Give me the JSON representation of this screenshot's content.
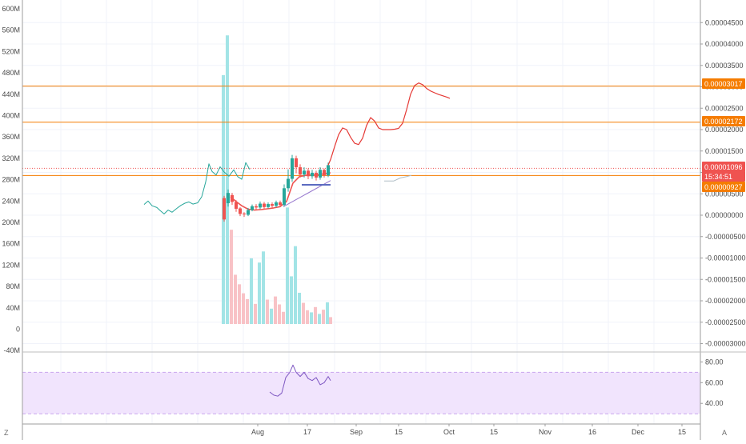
{
  "left_axis": {
    "ticks": [
      "600M",
      "560M",
      "520M",
      "480M",
      "440M",
      "400M",
      "360M",
      "320M",
      "280M",
      "240M",
      "200M",
      "160M",
      "120M",
      "80M",
      "40M",
      "0",
      "-40M"
    ]
  },
  "right_axis": {
    "ticks": [
      "0.00004500",
      "0.00004000",
      "0.00003500",
      "0.00003000",
      "0.00002500",
      "0.00002000",
      "0.00001500",
      "0.00001000",
      "0.00000500",
      "0.00000000",
      "-0.00000500",
      "-0.00001000",
      "-0.00001500",
      "-0.00002000",
      "-0.00002500",
      "-0.00003000"
    ]
  },
  "price_labels": [
    {
      "name": "level-upper",
      "text": "0.00003017",
      "color": "#f57c00"
    },
    {
      "name": "level-mid",
      "text": "0.00002172",
      "color": "#f57c00"
    },
    {
      "name": "last-price",
      "text": "0.00001096",
      "color": "#ef5350"
    },
    {
      "name": "countdown",
      "text": "15:34:51",
      "color": "#ef5350"
    },
    {
      "name": "level-lower",
      "text": "0.00000927",
      "color": "#f57c00"
    }
  ],
  "time_axis": {
    "ticks": [
      "Aug",
      "17",
      "Sep",
      "15",
      "Oct",
      "15",
      "Nov",
      "16",
      "Dec",
      "15"
    ]
  },
  "rsi_axis": {
    "ticks": [
      "80.00",
      "60.00",
      "40.00"
    ]
  },
  "buttons": {
    "zoom": "Z",
    "auto": "A"
  },
  "colors": {
    "up": "#26a69a",
    "down": "#ef5350",
    "volume_up": "#a2e4e6",
    "volume_down": "#f8c2c6",
    "horizontal_level": "#f57c00",
    "forecast_line": "#e53935",
    "rsi_line": "#7e57c2",
    "rsi_band": "#f1e4fd"
  },
  "chart_data": {
    "type": "candlestick",
    "price_axis_range": [
      -3e-05,
      4.5e-05
    ],
    "volume_axis_range": [
      -40000000,
      600000000
    ],
    "horizontal_levels": [
      3.017e-05,
      2.172e-05,
      9.27e-06
    ],
    "last_price": 1.096e-05,
    "line_series": [
      {
        "x": [
          180,
          185,
          190,
          196,
          200,
          205,
          210,
          215,
          221,
          226,
          231,
          236,
          241,
          247,
          252,
          257,
          261,
          265,
          270,
          275,
          280,
          286,
          292,
          297,
          302,
          307,
          312
        ],
        "y": [
          2.5e-06,
          3.3e-06,
          2.2e-06,
          1.8e-06,
          1.1e-06,
          3e-07,
          1.2e-06,
          7e-07,
          1.6e-06,
          2.3e-06,
          2.8e-06,
          3.1e-06,
          2.6e-06,
          2.9e-06,
          4.3e-06,
          7.8e-06,
          1.2e-05,
          1.02e-05,
          9.4e-06,
          1.13e-05,
          1.01e-05,
          9.1e-06,
          1.06e-05,
          9e-06,
          8.4e-06,
          1.23e-05,
          1.07e-05
        ]
      }
    ],
    "candles": [
      {
        "x": 280,
        "o": 4e-06,
        "c": -1e-06,
        "h": 4.5e-06,
        "l": -1.5e-06
      },
      {
        "x": 285,
        "o": 2.8e-06,
        "c": 5.2e-06,
        "h": 6e-06,
        "l": 2e-06
      },
      {
        "x": 290,
        "o": 4.7e-06,
        "c": 3.1e-06,
        "h": 5.2e-06,
        "l": 2.4e-06
      },
      {
        "x": 295,
        "o": 3.1e-06,
        "c": 1.5e-06,
        "h": 3.5e-06,
        "l": 8e-07
      },
      {
        "x": 300,
        "o": 1.6e-06,
        "c": 3e-07,
        "h": 1.9e-06,
        "l": -2e-07
      },
      {
        "x": 305,
        "o": 4e-07,
        "c": 2e-07,
        "h": 7e-07,
        "l": -4e-07
      },
      {
        "x": 310,
        "o": 1e-07,
        "c": 1.2e-06,
        "h": 1.7e-06,
        "l": -2e-07
      },
      {
        "x": 315,
        "o": 1.2e-06,
        "c": 2.1e-06,
        "h": 2.5e-06,
        "l": 9e-07
      },
      {
        "x": 320,
        "o": 2.1e-06,
        "c": 1.8e-06,
        "h": 2.6e-06,
        "l": 1.3e-06
      },
      {
        "x": 325,
        "o": 1.8e-06,
        "c": 2.7e-06,
        "h": 3.2e-06,
        "l": 1.4e-06
      },
      {
        "x": 330,
        "o": 2.7e-06,
        "c": 1.9e-06,
        "h": 3.1e-06,
        "l": 1.5e-06
      },
      {
        "x": 335,
        "o": 1.9e-06,
        "c": 2.6e-06,
        "h": 3e-06,
        "l": 1.6e-06
      },
      {
        "x": 340,
        "o": 2.6e-06,
        "c": 2.2e-06,
        "h": 3e-06,
        "l": 1.8e-06
      },
      {
        "x": 345,
        "o": 2.2e-06,
        "c": 3e-06,
        "h": 3.4e-06,
        "l": 1.8e-06
      },
      {
        "x": 350,
        "o": 3e-06,
        "c": 2.4e-06,
        "h": 3.4e-06,
        "l": 2e-06
      },
      {
        "x": 355,
        "o": 2.4e-06,
        "c": 6.3e-06,
        "h": 7.2e-06,
        "l": 2e-06
      },
      {
        "x": 360,
        "o": 6.3e-06,
        "c": 8.5e-06,
        "h": 1.07e-05,
        "l": 5.5e-06
      },
      {
        "x": 365,
        "o": 8.5e-06,
        "c": 1.33e-05,
        "h": 1.41e-05,
        "l": 7.8e-06
      },
      {
        "x": 370,
        "o": 1.33e-05,
        "c": 1.12e-05,
        "h": 1.39e-05,
        "l": 9.8e-06
      },
      {
        "x": 375,
        "o": 1.12e-05,
        "c": 9.5e-06,
        "h": 1.19e-05,
        "l": 8.8e-06
      },
      {
        "x": 380,
        "o": 9.5e-06,
        "c": 1.04e-05,
        "h": 1.12e-05,
        "l": 8.8e-06
      },
      {
        "x": 385,
        "o": 1.04e-05,
        "c": 9.1e-06,
        "h": 1.09e-05,
        "l": 8.4e-06
      },
      {
        "x": 390,
        "o": 9.1e-06,
        "c": 9.9e-06,
        "h": 1.06e-05,
        "l": 8.5e-06
      },
      {
        "x": 395,
        "o": 9.9e-06,
        "c": 8.8e-06,
        "h": 1.04e-05,
        "l": 8.1e-06
      },
      {
        "x": 400,
        "o": 8.8e-06,
        "c": 1.06e-05,
        "h": 1.12e-05,
        "l": 8.3e-06
      },
      {
        "x": 405,
        "o": 1.06e-05,
        "c": 9.3e-06,
        "h": 1.09e-05,
        "l": 8.8e-06
      },
      {
        "x": 410,
        "o": 9.3e-06,
        "c": 1.17e-05,
        "h": 1.23e-05,
        "l": 8.9e-06
      }
    ],
    "moving_average": {
      "x": [
        288,
        295,
        302,
        310,
        318,
        326,
        334,
        342,
        350,
        358,
        366,
        374,
        382,
        390,
        398,
        406,
        413
      ],
      "y": [
        4.3e-06,
        3.2e-06,
        2.2e-06,
        1.4e-06,
        1.2e-06,
        1.3e-06,
        1.5e-06,
        1.7e-06,
        2e-06,
        3.2e-06,
        7.5e-06,
        9e-06,
        9.3e-06,
        9.4e-06,
        9.5e-06,
        9.7e-06,
        9.9e-06
      ]
    },
    "trend_line": {
      "x": [
        354,
        413
      ],
      "y": [
        2e-06,
        8.1e-06
      ]
    },
    "horizontal_segment": {
      "x": [
        377,
        413
      ],
      "y": [
        7.1e-06,
        7.1e-06
      ]
    },
    "forecast": {
      "x": [
        410,
        413,
        418,
        423,
        428,
        433,
        438,
        443,
        448,
        453,
        458,
        463,
        468,
        473,
        478,
        483,
        488,
        493,
        498,
        503,
        508,
        513,
        518,
        523,
        528,
        533,
        538,
        543,
        548,
        553,
        558,
        562
      ],
      "y": [
        1.17e-05,
        1.3e-05,
        1.6e-05,
        1.88e-05,
        2.04e-05,
        2e-05,
        1.82e-05,
        1.68e-05,
        1.65e-05,
        1.8e-05,
        2.1e-05,
        2.28e-05,
        2.2e-05,
        2.04e-05,
        2e-05,
        2e-05,
        2e-05,
        2.01e-05,
        2.03e-05,
        2.15e-05,
        2.47e-05,
        2.83e-05,
        3.03e-05,
        3.09e-05,
        3.05e-05,
        2.96e-05,
        2.9e-05,
        2.86e-05,
        2.82e-05,
        2.79e-05,
        2.76e-05,
        2.73e-05
      ]
    },
    "ghost_line": {
      "x": [
        480,
        492,
        500,
        508,
        514
      ],
      "y": [
        8e-06,
        8e-06,
        8.7e-06,
        9e-06,
        9.3e-06
      ]
    },
    "volume": {
      "x": [
        279,
        284,
        289,
        294,
        299,
        304,
        309,
        314,
        319,
        324,
        329,
        334,
        339,
        344,
        349,
        354,
        359,
        364,
        369,
        374,
        379,
        384,
        389,
        394,
        399,
        404,
        409,
        413
      ],
      "values": [
        470000000,
        545000000,
        178000000,
        93000000,
        75000000,
        58000000,
        47000000,
        124000000,
        38000000,
        116000000,
        137000000,
        46000000,
        29000000,
        52000000,
        37000000,
        23000000,
        220000000,
        90000000,
        147000000,
        59000000,
        40000000,
        26000000,
        22000000,
        32000000,
        19000000,
        27000000,
        41000000,
        13000000
      ],
      "up": [
        true,
        true,
        false,
        false,
        false,
        false,
        false,
        true,
        false,
        true,
        true,
        false,
        true,
        false,
        false,
        false,
        true,
        true,
        true,
        true,
        false,
        false,
        true,
        false,
        true,
        false,
        true,
        false
      ]
    },
    "rsi": {
      "axis_range": [
        24.75,
        84.19
      ],
      "band": [
        70,
        30
      ],
      "x": [
        337,
        342,
        347,
        352,
        357,
        362,
        366,
        370,
        375,
        380,
        385,
        390,
        395,
        400,
        405,
        410,
        413
      ],
      "y": [
        51,
        48,
        47,
        50,
        65,
        70,
        77,
        70,
        66,
        70,
        64,
        62,
        65,
        58,
        60,
        66,
        62
      ]
    }
  }
}
